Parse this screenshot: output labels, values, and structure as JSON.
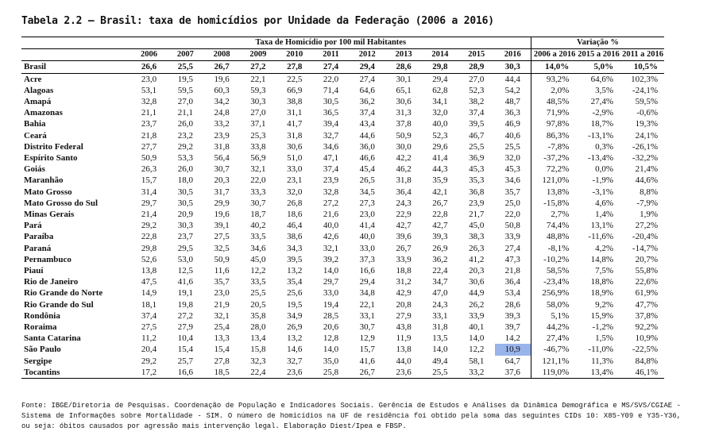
{
  "title": "Tabela 2.2 – Brasil: taxa de homicídios por Unidade da Federação (2006 a 2016)",
  "table": {
    "group_headers": [
      "Taxa de Homicídio por 100 mil Habitantes",
      "Variação %"
    ],
    "year_columns": [
      "2006",
      "2007",
      "2008",
      "2009",
      "2010",
      "2011",
      "2012",
      "2013",
      "2014",
      "2015",
      "2016"
    ],
    "variation_columns": [
      "2006 a 2016",
      "2015 a 2016",
      "2011 a 2016"
    ],
    "rows": [
      {
        "name": "Brasil",
        "values": [
          "26,6",
          "25,5",
          "26,7",
          "27,2",
          "27,8",
          "27,4",
          "29,4",
          "28,6",
          "29,8",
          "28,9",
          "30,3"
        ],
        "variation": [
          "14,0%",
          "5,0%",
          "10,5%"
        ]
      },
      {
        "name": "Acre",
        "values": [
          "23,0",
          "19,5",
          "19,6",
          "22,1",
          "22,5",
          "22,0",
          "27,4",
          "30,1",
          "29,4",
          "27,0",
          "44,4"
        ],
        "variation": [
          "93,2%",
          "64,6%",
          "102,3%"
        ]
      },
      {
        "name": "Alagoas",
        "values": [
          "53,1",
          "59,5",
          "60,3",
          "59,3",
          "66,9",
          "71,4",
          "64,6",
          "65,1",
          "62,8",
          "52,3",
          "54,2"
        ],
        "variation": [
          "2,0%",
          "3,5%",
          "-24,1%"
        ]
      },
      {
        "name": "Amapá",
        "values": [
          "32,8",
          "27,0",
          "34,2",
          "30,3",
          "38,8",
          "30,5",
          "36,2",
          "30,6",
          "34,1",
          "38,2",
          "48,7"
        ],
        "variation": [
          "48,5%",
          "27,4%",
          "59,5%"
        ]
      },
      {
        "name": "Amazonas",
        "values": [
          "21,1",
          "21,1",
          "24,8",
          "27,0",
          "31,1",
          "36,5",
          "37,4",
          "31,3",
          "32,0",
          "37,4",
          "36,3"
        ],
        "variation": [
          "71,9%",
          "-2,9%",
          "-0,6%"
        ]
      },
      {
        "name": "Bahia",
        "values": [
          "23,7",
          "26,0",
          "33,2",
          "37,1",
          "41,7",
          "39,4",
          "43,4",
          "37,8",
          "40,0",
          "39,5",
          "46,9"
        ],
        "variation": [
          "97,8%",
          "18,7%",
          "19,3%"
        ]
      },
      {
        "name": "Ceará",
        "values": [
          "21,8",
          "23,2",
          "23,9",
          "25,3",
          "31,8",
          "32,7",
          "44,6",
          "50,9",
          "52,3",
          "46,7",
          "40,6"
        ],
        "variation": [
          "86,3%",
          "-13,1%",
          "24,1%"
        ]
      },
      {
        "name": "Distrito Federal",
        "values": [
          "27,7",
          "29,2",
          "31,8",
          "33,8",
          "30,6",
          "34,6",
          "36,0",
          "30,0",
          "29,6",
          "25,5",
          "25,5"
        ],
        "variation": [
          "-7,8%",
          "0,3%",
          "-26,1%"
        ]
      },
      {
        "name": "Espírito Santo",
        "values": [
          "50,9",
          "53,3",
          "56,4",
          "56,9",
          "51,0",
          "47,1",
          "46,6",
          "42,2",
          "41,4",
          "36,9",
          "32,0"
        ],
        "variation": [
          "-37,2%",
          "-13,4%",
          "-32,2%"
        ]
      },
      {
        "name": "Goiás",
        "values": [
          "26,3",
          "26,0",
          "30,7",
          "32,1",
          "33,0",
          "37,4",
          "45,4",
          "46,2",
          "44,3",
          "45,3",
          "45,3"
        ],
        "variation": [
          "72,2%",
          "0,0%",
          "21,4%"
        ]
      },
      {
        "name": "Maranhão",
        "values": [
          "15,7",
          "18,0",
          "20,3",
          "22,0",
          "23,1",
          "23,9",
          "26,5",
          "31,8",
          "35,9",
          "35,3",
          "34,6"
        ],
        "variation": [
          "121,0%",
          "-1,9%",
          "44,6%"
        ]
      },
      {
        "name": "Mato Grosso",
        "values": [
          "31,4",
          "30,5",
          "31,7",
          "33,3",
          "32,0",
          "32,8",
          "34,5",
          "36,4",
          "42,1",
          "36,8",
          "35,7"
        ],
        "variation": [
          "13,8%",
          "-3,1%",
          "8,8%"
        ]
      },
      {
        "name": "Mato Grosso do Sul",
        "values": [
          "29,7",
          "30,5",
          "29,9",
          "30,7",
          "26,8",
          "27,2",
          "27,3",
          "24,3",
          "26,7",
          "23,9",
          "25,0"
        ],
        "variation": [
          "-15,8%",
          "4,6%",
          "-7,9%"
        ]
      },
      {
        "name": "Minas Gerais",
        "values": [
          "21,4",
          "20,9",
          "19,6",
          "18,7",
          "18,6",
          "21,6",
          "23,0",
          "22,9",
          "22,8",
          "21,7",
          "22,0"
        ],
        "variation": [
          "2,7%",
          "1,4%",
          "1,9%"
        ]
      },
      {
        "name": "Pará",
        "values": [
          "29,2",
          "30,3",
          "39,1",
          "40,2",
          "46,4",
          "40,0",
          "41,4",
          "42,7",
          "42,7",
          "45,0",
          "50,8"
        ],
        "variation": [
          "74,4%",
          "13,1%",
          "27,2%"
        ]
      },
      {
        "name": "Paraíba",
        "values": [
          "22,8",
          "23,7",
          "27,5",
          "33,5",
          "38,6",
          "42,6",
          "40,0",
          "39,6",
          "39,3",
          "38,3",
          "33,9"
        ],
        "variation": [
          "48,8%",
          "-11,6%",
          "-20,4%"
        ]
      },
      {
        "name": "Paraná",
        "values": [
          "29,8",
          "29,5",
          "32,5",
          "34,6",
          "34,3",
          "32,1",
          "33,0",
          "26,7",
          "26,9",
          "26,3",
          "27,4"
        ],
        "variation": [
          "-8,1%",
          "4,2%",
          "-14,7%"
        ]
      },
      {
        "name": "Pernambuco",
        "values": [
          "52,6",
          "53,0",
          "50,9",
          "45,0",
          "39,5",
          "39,2",
          "37,3",
          "33,9",
          "36,2",
          "41,2",
          "47,3"
        ],
        "variation": [
          "-10,2%",
          "14,8%",
          "20,7%"
        ]
      },
      {
        "name": "Piauí",
        "values": [
          "13,8",
          "12,5",
          "11,6",
          "12,2",
          "13,2",
          "14,0",
          "16,6",
          "18,8",
          "22,4",
          "20,3",
          "21,8"
        ],
        "variation": [
          "58,5%",
          "7,5%",
          "55,8%"
        ]
      },
      {
        "name": "Rio de Janeiro",
        "values": [
          "47,5",
          "41,6",
          "35,7",
          "33,5",
          "35,4",
          "29,7",
          "29,4",
          "31,2",
          "34,7",
          "30,6",
          "36,4"
        ],
        "variation": [
          "-23,4%",
          "18,8%",
          "22,6%"
        ]
      },
      {
        "name": "Rio Grande do Norte",
        "values": [
          "14,9",
          "19,1",
          "23,0",
          "25,5",
          "25,6",
          "33,0",
          "34,8",
          "42,9",
          "47,0",
          "44,9",
          "53,4"
        ],
        "variation": [
          "256,9%",
          "18,9%",
          "61,9%"
        ]
      },
      {
        "name": "Rio Grande do Sul",
        "values": [
          "18,1",
          "19,8",
          "21,9",
          "20,5",
          "19,5",
          "19,4",
          "22,1",
          "20,8",
          "24,3",
          "26,2",
          "28,6"
        ],
        "variation": [
          "58,0%",
          "9,2%",
          "47,7%"
        ]
      },
      {
        "name": "Rondônia",
        "values": [
          "37,4",
          "27,2",
          "32,1",
          "35,8",
          "34,9",
          "28,5",
          "33,1",
          "27,9",
          "33,1",
          "33,9",
          "39,3"
        ],
        "variation": [
          "5,1%",
          "15,9%",
          "37,8%"
        ]
      },
      {
        "name": "Roraima",
        "values": [
          "27,5",
          "27,9",
          "25,4",
          "28,0",
          "26,9",
          "20,6",
          "30,7",
          "43,8",
          "31,8",
          "40,1",
          "39,7"
        ],
        "variation": [
          "44,2%",
          "-1,2%",
          "92,2%"
        ]
      },
      {
        "name": "Santa Catarina",
        "values": [
          "11,2",
          "10,4",
          "13,3",
          "13,4",
          "13,2",
          "12,8",
          "12,9",
          "11,9",
          "13,5",
          "14,0",
          "14,2"
        ],
        "variation": [
          "27,4%",
          "1,5%",
          "10,9%"
        ]
      },
      {
        "name": "São Paulo",
        "values": [
          "20,4",
          "15,4",
          "15,4",
          "15,8",
          "14,6",
          "14,0",
          "15,7",
          "13,8",
          "14,0",
          "12,2",
          "10,9"
        ],
        "variation": [
          "-46,7%",
          "-11,0%",
          "-22,5%"
        ]
      },
      {
        "name": "Sergipe",
        "values": [
          "29,2",
          "25,7",
          "27,8",
          "32,3",
          "32,7",
          "35,0",
          "41,6",
          "44,0",
          "49,4",
          "58,1",
          "64,7"
        ],
        "variation": [
          "121,1%",
          "11,3%",
          "84,8%"
        ]
      },
      {
        "name": "Tocantins",
        "values": [
          "17,2",
          "16,6",
          "18,5",
          "22,4",
          "23,6",
          "25,8",
          "26,7",
          "23,6",
          "25,5",
          "33,2",
          "37,6"
        ],
        "variation": [
          "119,0%",
          "13,4%",
          "46,1%"
        ]
      }
    ]
  },
  "source": "Fonte: IBGE/Diretoria de Pesquisas. Coordenação de População e Indicadores Sociais. Gerência de Estudos e Análises da Dinâmica Demográfica e MS/SVS/CGIAE - Sistema de Informações sobre Mortalidade - SIM. O número de homicídios na UF de residência foi obtido pela soma das seguintes CIDs 10: X85-Y09 e Y35-Y36, ou seja: óbitos causados por agressão mais intervenção legal. Elaboração Diest/Ipea e FBSP."
}
